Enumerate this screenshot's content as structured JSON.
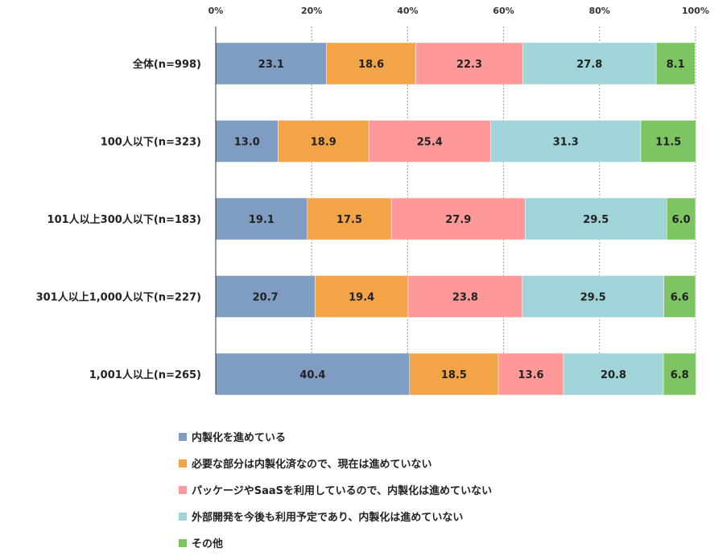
{
  "chart_data": {
    "type": "bar",
    "orientation": "horizontal",
    "stacked": true,
    "title": "",
    "xlabel": "",
    "ylabel": "",
    "xlim": [
      0,
      100
    ],
    "x_ticks": [
      "0%",
      "20%",
      "40%",
      "60%",
      "80%",
      "100%"
    ],
    "x_tick_values": [
      0,
      20,
      40,
      60,
      80,
      100
    ],
    "grid": true,
    "legend_position": "bottom",
    "categories": [
      "全体(n=998)",
      "100人以下(n=323)",
      "101人以上300人以下(n=183)",
      "301人以上1,000人以下(n=227)",
      "1,001人以上(n=265)"
    ],
    "series": [
      {
        "name": "内製化を進めている",
        "color": "#7F9CC2",
        "values": [
          23.1,
          13.0,
          19.1,
          20.7,
          40.4
        ],
        "labels": [
          "23.1",
          "13.0",
          "19.1",
          "20.7",
          "40.4"
        ]
      },
      {
        "name": "必要な部分は内製化済なので、現在は進めていない",
        "color": "#F2A446",
        "values": [
          18.6,
          18.9,
          17.5,
          19.4,
          18.5
        ],
        "labels": [
          "18.6",
          "18.9",
          "17.5",
          "19.4",
          "18.5"
        ]
      },
      {
        "name": "パッケージやSaaSを利用しているので、内製化は進めていない",
        "color": "#FF9999",
        "values": [
          22.3,
          25.4,
          27.9,
          23.8,
          13.6
        ],
        "labels": [
          "22.3",
          "25.4",
          "27.9",
          "23.8",
          "13.6"
        ]
      },
      {
        "name": "外部開発を今後も利用予定であり、内製化は進めていない",
        "color": "#9FD4D8",
        "values": [
          27.8,
          31.3,
          29.5,
          29.5,
          20.8
        ],
        "labels": [
          "27.8",
          "31.3",
          "29.5",
          "29.5",
          "20.8"
        ]
      },
      {
        "name": "その他",
        "color": "#7DC462",
        "values": [
          8.1,
          11.5,
          6.0,
          6.6,
          6.8
        ],
        "labels": [
          "8.1",
          "11.5",
          "6.0",
          "6.6",
          "6.8"
        ]
      }
    ]
  }
}
